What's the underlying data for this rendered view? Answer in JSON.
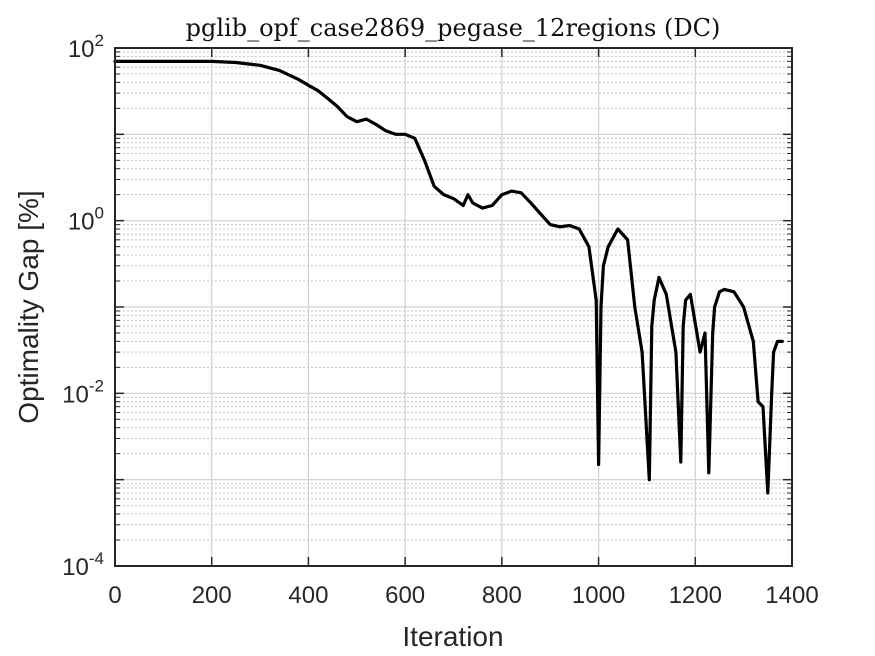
{
  "chart_data": {
    "type": "line",
    "title": "pglib_opf_case2869_pegase_12regions (DC)",
    "xlabel": "Iteration",
    "ylabel": "Optimality Gap [%]",
    "xlim": [
      0,
      1400
    ],
    "ylim": [
      0.0001,
      100
    ],
    "yscale": "log",
    "grid": true,
    "minor_grid": true,
    "xticks": [
      0,
      200,
      400,
      600,
      800,
      1000,
      1200,
      1400
    ],
    "yticks": [
      {
        "base": "10",
        "exp": "-4",
        "value": 0.0001
      },
      {
        "base": "10",
        "exp": "-2",
        "value": 0.01
      },
      {
        "base": "10",
        "exp": "0",
        "value": 1
      },
      {
        "base": "10",
        "exp": "2",
        "value": 100
      }
    ],
    "line_color": "#000000",
    "series": [
      {
        "x": [
          0,
          100,
          200,
          250,
          300,
          340,
          380,
          400,
          420,
          440,
          460,
          480,
          500,
          520,
          540,
          560,
          580,
          600,
          620,
          640,
          660,
          680,
          700,
          720,
          730,
          740,
          760,
          780,
          800,
          820,
          840,
          860,
          880,
          900,
          920,
          940,
          960,
          980,
          995,
          1000,
          1005,
          1010,
          1020,
          1040,
          1060,
          1075,
          1090,
          1105,
          1110,
          1115,
          1125,
          1140,
          1160,
          1170,
          1175,
          1180,
          1190,
          1210,
          1220,
          1228,
          1236,
          1240,
          1250,
          1260,
          1280,
          1300,
          1320,
          1330,
          1340,
          1350,
          1358,
          1362,
          1370,
          1380
        ],
        "y": [
          70,
          70,
          70,
          68,
          63,
          55,
          43,
          37,
          32,
          26,
          21,
          16,
          14,
          15,
          13,
          11,
          10,
          10,
          9,
          5,
          2.5,
          2,
          1.8,
          1.5,
          2,
          1.6,
          1.4,
          1.5,
          2,
          2.2,
          2.1,
          1.6,
          1.2,
          0.9,
          0.85,
          0.88,
          0.8,
          0.5,
          0.12,
          0.0015,
          0.1,
          0.3,
          0.5,
          0.8,
          0.6,
          0.1,
          0.03,
          0.001,
          0.06,
          0.12,
          0.22,
          0.14,
          0.03,
          0.0016,
          0.06,
          0.12,
          0.14,
          0.03,
          0.05,
          0.0012,
          0.05,
          0.1,
          0.15,
          0.16,
          0.15,
          0.1,
          0.04,
          0.008,
          0.007,
          0.0007,
          0.01,
          0.03,
          0.04,
          0.04
        ]
      }
    ]
  }
}
